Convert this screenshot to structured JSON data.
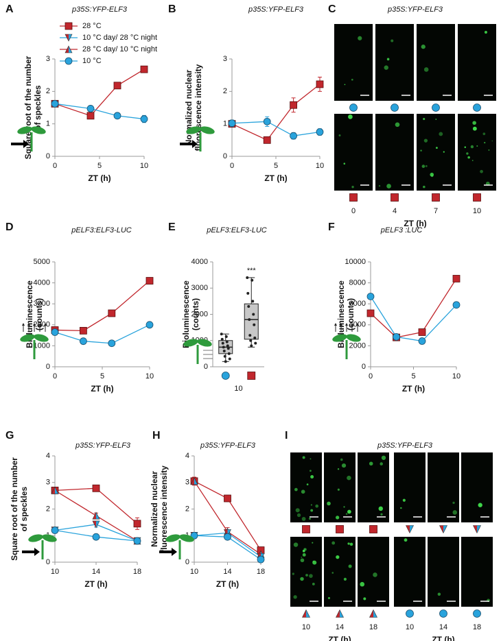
{
  "chart_data": [
    {
      "type": "line",
      "panel": "A",
      "title": "p35S:YFP-ELF3",
      "ylabel": [
        "Square root of the number",
        "of speckles"
      ],
      "xlabel": "ZT (h)",
      "x": [
        0,
        4,
        7,
        10
      ],
      "xlim": [
        0,
        10
      ],
      "xticks": [
        0,
        5,
        10
      ],
      "ylim": [
        0,
        3
      ],
      "yticks": [
        0,
        1,
        2,
        3
      ],
      "legend": [
        {
          "name": "28 °C",
          "color": "#c1272d",
          "marker": "square"
        },
        {
          "name": "10 °C day/ 28 °C night",
          "color": "#29a3dc",
          "marker": "triangle-down",
          "marker_colors": [
            "#c1272d",
            "#29a3dc"
          ]
        },
        {
          "name": "28 °C day/ 10 °C night",
          "color": "#c1272d",
          "marker": "triangle-up",
          "marker_colors": [
            "#c1272d",
            "#29a3dc"
          ]
        },
        {
          "name": "10 °C",
          "color": "#29a3dc",
          "marker": "circle"
        }
      ],
      "series": [
        {
          "color": "#c1272d",
          "marker": "square",
          "values": [
            1.62,
            1.25,
            2.18,
            2.68
          ],
          "errors": [
            0.05,
            0.05,
            0.1,
            0.07
          ]
        },
        {
          "color": "#29a3dc",
          "marker": "circle",
          "values": [
            1.62,
            1.47,
            1.25,
            1.15
          ],
          "errors": [
            0.08,
            0.08,
            0.09,
            0.11
          ]
        }
      ]
    },
    {
      "type": "line",
      "panel": "B",
      "title": "p35S:YFP-ELF3",
      "ylabel": [
        "Normalized nuclear",
        "fluorescence intensity"
      ],
      "xlabel": "ZT (h)",
      "x": [
        0,
        4,
        7,
        10
      ],
      "xlim": [
        0,
        10
      ],
      "xticks": [
        0,
        5,
        10
      ],
      "ylim": [
        0,
        3
      ],
      "yticks": [
        0,
        1,
        2,
        3
      ],
      "series": [
        {
          "color": "#c1272d",
          "marker": "square",
          "values": [
            1.0,
            0.5,
            1.58,
            2.22
          ],
          "errors": [
            0.05,
            0.05,
            0.22,
            0.22
          ]
        },
        {
          "color": "#29a3dc",
          "marker": "circle",
          "values": [
            1.02,
            1.07,
            0.63,
            0.75
          ],
          "errors": [
            0.1,
            0.15,
            0.1,
            0.1
          ]
        }
      ]
    },
    {
      "type": "image-grid",
      "panel": "C",
      "title": "p35S:YFP-ELF3",
      "xlabels": [
        "ZT (h)"
      ],
      "rows": [
        [
          "circle",
          "circle",
          "circle",
          "circle"
        ],
        [
          "square",
          "square",
          "square",
          "square"
        ]
      ],
      "column_labels": [
        "0",
        "4",
        "7",
        "10"
      ]
    },
    {
      "type": "line",
      "panel": "D",
      "title": "pELF3:ELF3-LUC",
      "ylabel": [
        "Bioluminescence",
        "(counts)"
      ],
      "xlabel": "ZT (h)",
      "x": [
        0,
        3,
        6,
        10
      ],
      "xlim": [
        0,
        10
      ],
      "xticks": [
        0,
        5,
        10
      ],
      "ylim": [
        0,
        5000
      ],
      "yticks": [
        0,
        1000,
        2000,
        3000,
        4000,
        5000
      ],
      "series": [
        {
          "color": "#c1272d",
          "marker": "square",
          "values": [
            1750,
            1720,
            2550,
            4100
          ]
        },
        {
          "color": "#29a3dc",
          "marker": "circle",
          "values": [
            1650,
            1220,
            1120,
            2000
          ]
        }
      ]
    },
    {
      "type": "box",
      "panel": "E",
      "title": "pELF3:ELF3-LUC",
      "ylabel": [
        "Bioluminescence",
        "(counts)"
      ],
      "category": "10",
      "annotation": "***",
      "ylim": [
        0,
        4000
      ],
      "yticks": [
        0,
        1000,
        2000,
        3000,
        4000
      ],
      "series": [
        {
          "color": "#29a3dc",
          "marker": "circle",
          "min": 200,
          "q1": 500,
          "median": 750,
          "q3": 1000,
          "max": 1250,
          "points": [
            1250,
            1150,
            1050,
            950,
            900,
            800,
            750,
            700,
            600,
            500,
            400,
            300,
            200
          ]
        },
        {
          "color": "#c1272d",
          "marker": "square",
          "min": 750,
          "q1": 1050,
          "median": 1800,
          "q3": 2400,
          "max": 3400,
          "points": [
            3400,
            3300,
            2800,
            2500,
            2300,
            2000,
            1800,
            1600,
            1200,
            1100,
            1000,
            900,
            800
          ]
        }
      ]
    },
    {
      "type": "line",
      "panel": "F",
      "title": "pELF3 :LUC",
      "ylabel": [
        "Bioluminescence",
        "(counts)"
      ],
      "xlabel": "ZT (h)",
      "x": [
        0,
        3,
        6,
        10
      ],
      "xlim": [
        0,
        10
      ],
      "xticks": [
        0,
        5,
        10
      ],
      "ylim": [
        0,
        10000
      ],
      "yticks": [
        0,
        2000,
        4000,
        6000,
        8000,
        10000
      ],
      "series": [
        {
          "color": "#c1272d",
          "marker": "square",
          "values": [
            5100,
            2800,
            3300,
            8400
          ]
        },
        {
          "color": "#29a3dc",
          "marker": "circle",
          "values": [
            6700,
            2850,
            2450,
            5900
          ]
        }
      ]
    },
    {
      "type": "line",
      "panel": "G",
      "title": "p35S:YFP-ELF3",
      "ylabel": [
        "Square root of the number",
        "of speckles"
      ],
      "xlabel": "ZT (h)",
      "x": [
        10,
        14,
        18
      ],
      "xlim": [
        10,
        18
      ],
      "xticks": [
        10,
        14,
        18
      ],
      "ylim": [
        0,
        4
      ],
      "yticks": [
        0,
        1,
        2,
        3,
        4
      ],
      "series": [
        {
          "color": "#c1272d",
          "marker": "square",
          "values": [
            2.7,
            2.78,
            1.45
          ],
          "errors": [
            0.08,
            0.08,
            0.22
          ]
        },
        {
          "color": "#c1272d",
          "marker": "triangle-up",
          "marker_colors": [
            "#c1272d",
            "#29a3dc"
          ],
          "values": [
            2.7,
            1.75,
            0.8
          ],
          "errors": [
            0.08,
            0.1,
            0.1
          ]
        },
        {
          "color": "#29a3dc",
          "marker": "triangle-down",
          "marker_colors": [
            "#c1272d",
            "#29a3dc"
          ],
          "values": [
            1.2,
            1.42,
            0.8
          ],
          "errors": [
            0.1,
            0.1,
            0.1
          ]
        },
        {
          "color": "#29a3dc",
          "marker": "circle",
          "values": [
            1.2,
            0.95,
            0.8
          ],
          "errors": [
            0.08,
            0.08,
            0.08
          ]
        }
      ]
    },
    {
      "type": "line",
      "panel": "H",
      "title": "p35S:YFP-ELF3",
      "ylabel": [
        "Normalized nuclear",
        "fluorescence intensity"
      ],
      "xlabel": "ZT (h)",
      "x": [
        10,
        14,
        18
      ],
      "xlim": [
        10,
        18
      ],
      "xticks": [
        10,
        14,
        18
      ],
      "ylim": [
        0,
        4
      ],
      "yticks": [
        0,
        1,
        2,
        3,
        4
      ],
      "series": [
        {
          "color": "#c1272d",
          "marker": "square",
          "values": [
            3.05,
            2.4,
            0.45
          ],
          "errors": [
            0.15,
            0.12,
            0.08
          ]
        },
        {
          "color": "#c1272d",
          "marker": "triangle-up",
          "marker_colors": [
            "#c1272d",
            "#29a3dc"
          ],
          "values": [
            3.05,
            1.15,
            0.3
          ],
          "errors": [
            0.15,
            0.15,
            0.06
          ]
        },
        {
          "color": "#29a3dc",
          "marker": "triangle-down",
          "marker_colors": [
            "#c1272d",
            "#29a3dc"
          ],
          "values": [
            1.0,
            1.1,
            0.2
          ],
          "errors": [
            0.08,
            0.1,
            0.05
          ]
        },
        {
          "color": "#29a3dc",
          "marker": "circle",
          "values": [
            1.0,
            0.95,
            0.1
          ],
          "errors": [
            0.08,
            0.08,
            0.04
          ]
        }
      ]
    },
    {
      "type": "image-grid",
      "panel": "I",
      "title": "p35S:YFP-ELF3",
      "xlabels": [
        "ZT (h)",
        "ZT (h)"
      ],
      "rows": [
        [
          "square",
          "square",
          "square",
          "triangle-down",
          "triangle-down",
          "triangle-down"
        ],
        [
          "triangle-up",
          "triangle-up",
          "triangle-up",
          "circle",
          "circle",
          "circle"
        ]
      ],
      "column_labels": [
        "10",
        "14",
        "18",
        "10",
        "14",
        "18"
      ]
    }
  ]
}
